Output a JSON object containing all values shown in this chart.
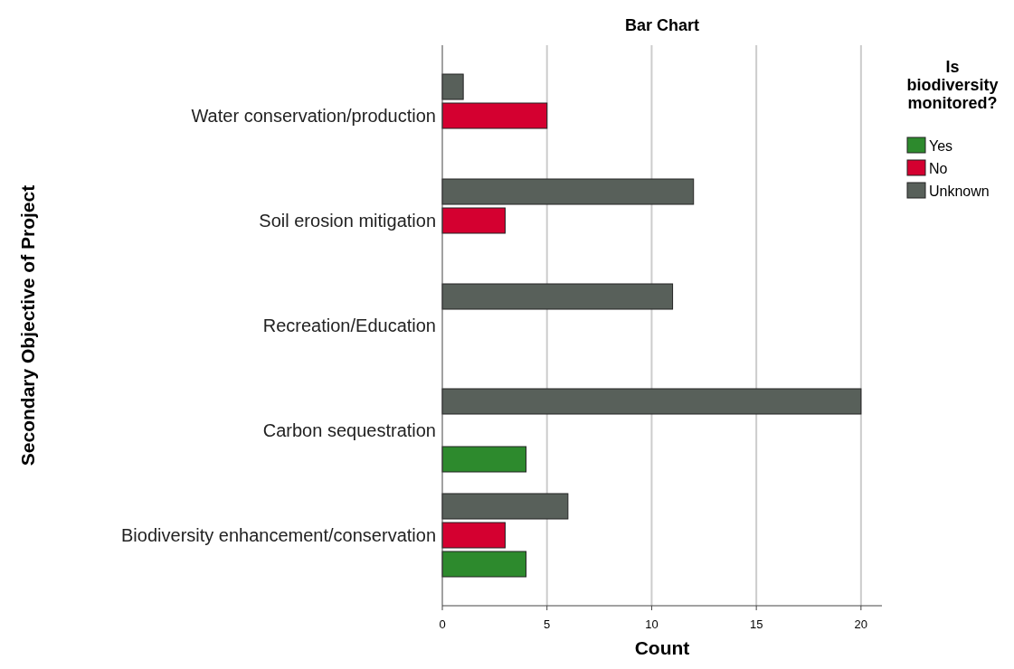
{
  "chart_data": {
    "type": "bar",
    "orientation": "horizontal",
    "title": "Bar Chart",
    "xlabel": "Count",
    "ylabel": "Secondary Objective of Project",
    "legend_title": "Is biodiversity monitored?",
    "legend": "right",
    "categories": [
      "Water conservation/production",
      "Soil erosion mitigation",
      "Recreation/Education",
      "Carbon sequestration",
      "Biodiversity enhancement/conservation"
    ],
    "series": [
      {
        "name": "Yes",
        "color": "#2d8a2d",
        "values": [
          null,
          null,
          null,
          4,
          4
        ]
      },
      {
        "name": "No",
        "color": "#d40030",
        "values": [
          5,
          3,
          null,
          null,
          3
        ]
      },
      {
        "name": "Unknown",
        "color": "#58605a",
        "values": [
          1,
          12,
          11,
          20,
          6
        ]
      }
    ],
    "xlim": [
      0,
      21
    ],
    "xticks": [
      0,
      5,
      10,
      15,
      20
    ],
    "grid": "x"
  }
}
